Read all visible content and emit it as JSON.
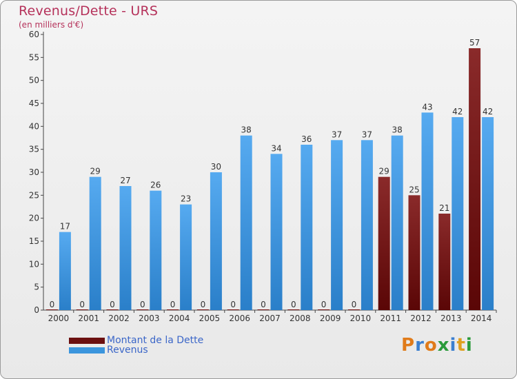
{
  "title": "Revenus/Dette - URS",
  "subtitle": "(en milliers d'€)",
  "chart_data": {
    "type": "bar",
    "categories": [
      "2000",
      "2001",
      "2002",
      "2003",
      "2004",
      "2005",
      "2006",
      "2007",
      "2008",
      "2009",
      "2010",
      "2011",
      "2012",
      "2013",
      "2014"
    ],
    "series": [
      {
        "name": "Montant de la Dette",
        "values": [
          0,
          0,
          0,
          0,
          0,
          0,
          0,
          0,
          0,
          0,
          0,
          29,
          25,
          21,
          57
        ],
        "color": "#7a1515"
      },
      {
        "name": "Revenus",
        "values": [
          17,
          29,
          27,
          26,
          23,
          30,
          38,
          34,
          36,
          37,
          37,
          38,
          43,
          42,
          42
        ],
        "color": "#3b95dd"
      }
    ],
    "ylim": [
      0,
      60
    ],
    "yticks": [
      0,
      5,
      10,
      15,
      20,
      25,
      30,
      35,
      40,
      45,
      50,
      55,
      60
    ],
    "grid": false,
    "legend_position": "bottom-left"
  },
  "legend": {
    "items": [
      {
        "label": "Montant de la Dette",
        "color": "#6b0f0f"
      },
      {
        "label": "Revenus",
        "color": "#3b95dd"
      }
    ]
  },
  "logo": {
    "text": "Proxiti",
    "letter_colors": [
      "#e07b1a",
      "#3b7fd0",
      "#e07b1a",
      "#2a9a3a",
      "#3b7fd0",
      "#e0a020",
      "#2a9a3a"
    ]
  }
}
